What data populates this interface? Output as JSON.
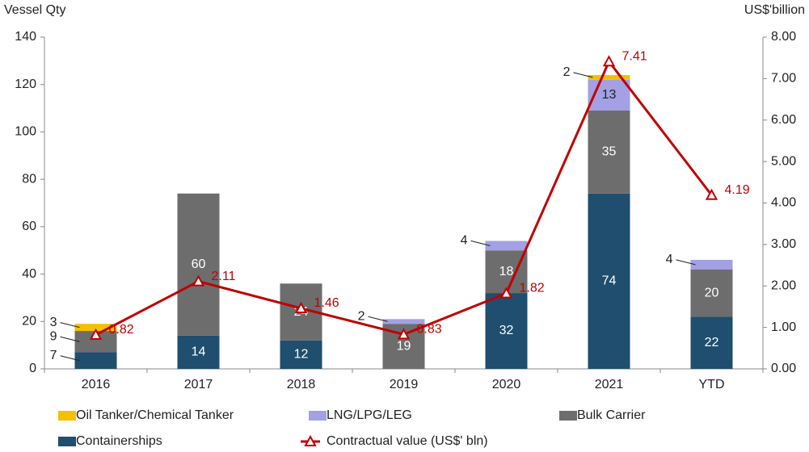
{
  "chart_data": {
    "type": "bar",
    "y_label": "Vessel Qty",
    "y2_label": "US$'billion",
    "categories": [
      "2016",
      "2017",
      "2018",
      "2019",
      "2020",
      "2021",
      "YTD"
    ],
    "series": [
      {
        "name": "Containerships",
        "color": "#1f4e6e",
        "values": [
          7,
          14,
          12,
          null,
          32,
          74,
          22
        ]
      },
      {
        "name": "Bulk Carrier",
        "color": "#6d6d6d",
        "values": [
          9,
          60,
          24,
          19,
          18,
          35,
          20
        ]
      },
      {
        "name": "LNG/LPG/LEG",
        "color": "#a3a0e3",
        "values": [
          null,
          null,
          null,
          2,
          4,
          13,
          4
        ]
      },
      {
        "name": "Oil Tanker/Chemical Tanker",
        "color": "#f5c000",
        "values": [
          3,
          null,
          null,
          null,
          null,
          2,
          null
        ]
      },
      {
        "name": "Contractual value (US$' bln)",
        "color": "#c00000",
        "type": "line",
        "axis": "y2",
        "values": [
          0.82,
          2.11,
          1.46,
          0.83,
          1.82,
          7.41,
          4.19
        ]
      }
    ],
    "stacked": true,
    "ylim": [
      0,
      140
    ],
    "yticks": [
      0,
      20,
      40,
      60,
      80,
      100,
      120,
      140
    ],
    "y2lim": [
      0,
      8
    ],
    "y2ticks": [
      {
        "value": 0,
        "label": "0.00"
      },
      {
        "value": 1,
        "label": "1.00"
      },
      {
        "value": 2,
        "label": "2.00"
      },
      {
        "value": 3,
        "label": "3.00"
      },
      {
        "value": 4,
        "label": "4.00"
      },
      {
        "value": 5,
        "label": "5.00"
      },
      {
        "value": 6,
        "label": "6.00"
      },
      {
        "value": 7,
        "label": "7.00"
      },
      {
        "value": 8,
        "label": "8.00"
      }
    ]
  }
}
